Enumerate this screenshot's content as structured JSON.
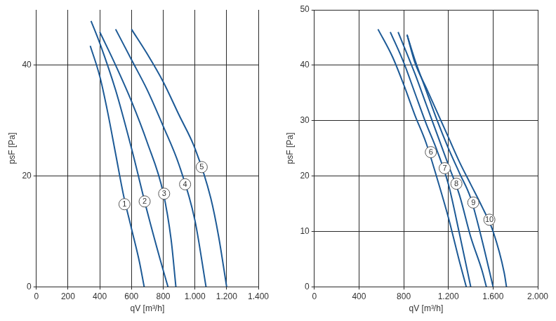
{
  "chart_data": [
    {
      "type": "line",
      "x_label": "qV [m³/h]",
      "y_label": "psF [Pa]",
      "xlim": [
        0,
        1400
      ],
      "xticks": [
        0,
        200,
        400,
        600,
        800,
        {
          "value": 1000,
          "label": "1.000"
        },
        {
          "value": 1200,
          "label": "1.200"
        },
        {
          "value": 1400,
          "label": "1.400"
        }
      ],
      "ylim": [
        0,
        50
      ],
      "yticks": [
        0,
        20,
        40
      ],
      "y_minor": [
        10,
        30,
        50
      ],
      "grid": true,
      "series": [
        {
          "name": "1",
          "color": "#1d5a96",
          "x": [
            340,
            400,
            450,
            500,
            550,
            600,
            650,
            680
          ],
          "values": [
            43.5,
            38,
            31.5,
            24,
            16.5,
            10.5,
            4.5,
            0
          ],
          "label_point": [
            556,
            14.9
          ]
        },
        {
          "name": "2",
          "color": "#1d5a96",
          "x": [
            345,
            400,
            500,
            600,
            700,
            780,
            830
          ],
          "values": [
            48,
            44,
            35.5,
            25,
            13.5,
            5,
            0
          ],
          "label_point": [
            683,
            15.4
          ]
        },
        {
          "name": "3",
          "color": "#1d5a96",
          "x": [
            400,
            500,
            600,
            700,
            800,
            850,
            880
          ],
          "values": [
            46,
            40,
            33.5,
            26,
            17,
            8.5,
            0
          ],
          "label_point": [
            806,
            16.8
          ]
        },
        {
          "name": "4",
          "color": "#1d5a96",
          "x": [
            500,
            600,
            700,
            800,
            900,
            1000,
            1070
          ],
          "values": [
            46.5,
            41,
            35.5,
            29,
            22,
            12,
            0
          ],
          "label_point": [
            938,
            18.5
          ]
        },
        {
          "name": "5",
          "color": "#1d5a96",
          "x": [
            600,
            700,
            800,
            900,
            1000,
            1100,
            1150,
            1200
          ],
          "values": [
            46.5,
            42,
            37,
            31,
            25,
            16,
            9,
            0
          ],
          "label_point": [
            1043,
            21.6
          ]
        }
      ]
    },
    {
      "type": "line",
      "x_label": "qV [m³/h]",
      "y_label": "psF [Pa]",
      "xlim": [
        0,
        2000
      ],
      "xticks": [
        0,
        400,
        800,
        {
          "value": 1200,
          "label": "1.200"
        },
        {
          "value": 1600,
          "label": "1.600"
        },
        {
          "value": 2000,
          "label": "2.000"
        }
      ],
      "ylim": [
        0,
        50
      ],
      "yticks": [
        0,
        10,
        20,
        30,
        40,
        50
      ],
      "y_minor": [],
      "grid": true,
      "series": [
        {
          "name": "6",
          "color": "#1d5a96",
          "x": [
            570,
            700,
            800,
            900,
            1000,
            1100,
            1200,
            1300,
            1360
          ],
          "values": [
            46.5,
            41.5,
            36.5,
            31,
            26,
            19.5,
            12.5,
            4.5,
            0
          ],
          "label_point": [
            1043,
            24.3
          ]
        },
        {
          "name": "7",
          "color": "#1d5a96",
          "x": [
            680,
            800,
            900,
            1000,
            1100,
            1200,
            1300,
            1400
          ],
          "values": [
            46,
            40.5,
            35,
            29.5,
            24.5,
            18.5,
            9.5,
            0
          ],
          "label_point": [
            1167,
            21.4
          ]
        },
        {
          "name": "8",
          "color": "#1d5a96",
          "x": [
            750,
            900,
            1000,
            1100,
            1200,
            1300,
            1400,
            1500,
            1540
          ],
          "values": [
            46,
            38.5,
            33,
            27.5,
            22,
            16.5,
            9,
            3,
            0
          ],
          "label_point": [
            1272,
            18.6
          ]
        },
        {
          "name": "9",
          "color": "#1d5a96",
          "x": [
            830,
            900,
            1000,
            1100,
            1200,
            1300,
            1400,
            1500,
            1600
          ],
          "values": [
            45.5,
            41,
            35.5,
            30,
            25,
            20.5,
            16,
            8.5,
            0
          ],
          "label_point": [
            1423,
            15.2
          ]
        },
        {
          "name": "10",
          "color": "#1d5a96",
          "x": [
            830,
            900,
            1000,
            1100,
            1200,
            1300,
            1400,
            1500,
            1600,
            1700,
            1720
          ],
          "values": [
            45.5,
            40.5,
            36,
            31.5,
            27,
            22.5,
            18.5,
            14.5,
            10,
            2.5,
            0
          ],
          "label_point": [
            1567,
            12.1
          ]
        }
      ]
    }
  ]
}
